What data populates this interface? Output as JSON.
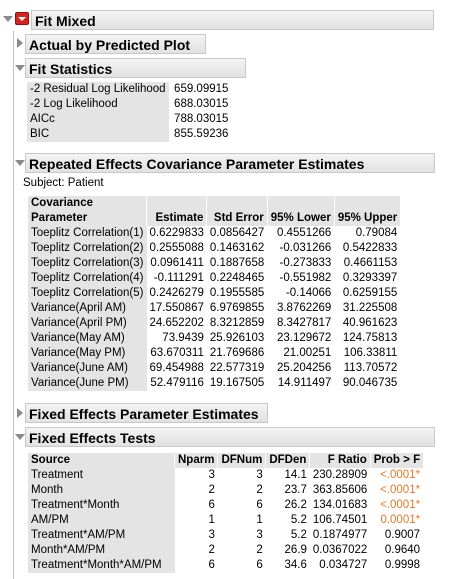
{
  "report": {
    "title": "Fit Mixed",
    "sections": {
      "actual_by_predicted": "Actual by Predicted Plot",
      "fit_statistics": "Fit Statistics",
      "covariance": "Repeated Effects Covariance Parameter Estimates",
      "fixed_params": "Fixed Effects Parameter Estimates",
      "fixed_tests": "Fixed Effects Tests"
    }
  },
  "fit_statistics": [
    {
      "label": "-2 Residual Log Likelihood",
      "value": "659.09915"
    },
    {
      "label": "-2 Log Likelihood",
      "value": "688.03015"
    },
    {
      "label": "AICc",
      "value": "788.03015"
    },
    {
      "label": "BIC",
      "value": "855.59236"
    }
  ],
  "covariance": {
    "subject": "Subject: Patient",
    "headers": {
      "param_line1": "Covariance",
      "param_line2": "Parameter",
      "estimate": "Estimate",
      "std_error": "Std Error",
      "lower": "95% Lower",
      "upper": "95% Upper"
    },
    "rows": [
      {
        "param": "Toeplitz Correlation(1)",
        "estimate": "0.6229833",
        "std_error": "0.0856427",
        "lower": "0.4551266",
        "upper": "0.79084"
      },
      {
        "param": "Toeplitz Correlation(2)",
        "estimate": "0.2555088",
        "std_error": "0.1463162",
        "lower": "-0.031266",
        "upper": "0.5422833"
      },
      {
        "param": "Toeplitz Correlation(3)",
        "estimate": "0.0961411",
        "std_error": "0.1887658",
        "lower": "-0.273833",
        "upper": "0.4661153"
      },
      {
        "param": "Toeplitz Correlation(4)",
        "estimate": "-0.111291",
        "std_error": "0.2248465",
        "lower": "-0.551982",
        "upper": "0.3293397"
      },
      {
        "param": "Toeplitz Correlation(5)",
        "estimate": "0.2426279",
        "std_error": "0.1955585",
        "lower": "-0.14066",
        "upper": "0.6259155"
      },
      {
        "param": "Variance(April AM)",
        "estimate": "17.550867",
        "std_error": "6.9769855",
        "lower": "3.8762269",
        "upper": "31.225508"
      },
      {
        "param": "Variance(April PM)",
        "estimate": "24.652202",
        "std_error": "8.3212859",
        "lower": "8.3427817",
        "upper": "40.961623"
      },
      {
        "param": "Variance(May AM)",
        "estimate": "73.9439",
        "std_error": "25.926103",
        "lower": "23.129672",
        "upper": "124.75813"
      },
      {
        "param": "Variance(May PM)",
        "estimate": "63.670311",
        "std_error": "21.769686",
        "lower": "21.00251",
        "upper": "106.33811"
      },
      {
        "param": "Variance(June AM)",
        "estimate": "69.454988",
        "std_error": "22.577319",
        "lower": "25.204256",
        "upper": "113.70572"
      },
      {
        "param": "Variance(June PM)",
        "estimate": "52.479116",
        "std_error": "19.167505",
        "lower": "14.911497",
        "upper": "90.046735"
      }
    ]
  },
  "fixed_tests": {
    "headers": {
      "source": "Source",
      "nparm": "Nparm",
      "dfnum": "DFNum",
      "dfden": "DFDen",
      "fratio": "F Ratio",
      "prob": "Prob > F"
    },
    "rows": [
      {
        "source": "Treatment",
        "nparm": "3",
        "dfnum": "3",
        "dfden": "14.1",
        "fratio": "230.28909",
        "prob": "<.0001*",
        "significant": true
      },
      {
        "source": "Month",
        "nparm": "2",
        "dfnum": "2",
        "dfden": "23.7",
        "fratio": "363.85606",
        "prob": "<.0001*",
        "significant": true
      },
      {
        "source": "Treatment*Month",
        "nparm": "6",
        "dfnum": "6",
        "dfden": "26.2",
        "fratio": "134.01683",
        "prob": "<.0001*",
        "significant": true
      },
      {
        "source": "AM/PM",
        "nparm": "1",
        "dfnum": "1",
        "dfden": "5.2",
        "fratio": "106.74501",
        "prob": "0.0001*",
        "significant": true
      },
      {
        "source": "Treatment*AM/PM",
        "nparm": "3",
        "dfnum": "3",
        "dfden": "5.2",
        "fratio": "0.1874977",
        "prob": "0.9007",
        "significant": false
      },
      {
        "source": "Month*AM/PM",
        "nparm": "2",
        "dfnum": "2",
        "dfden": "26.9",
        "fratio": "0.0367022",
        "prob": "0.9640",
        "significant": false
      },
      {
        "source": "Treatment*Month*AM/PM",
        "nparm": "6",
        "dfnum": "6",
        "dfden": "34.6",
        "fratio": "0.034727",
        "prob": "0.9998",
        "significant": false
      }
    ]
  },
  "colors": {
    "significant": "#e87722",
    "header_bg": "#e4e4e4",
    "red_menu": "#d8231e"
  }
}
